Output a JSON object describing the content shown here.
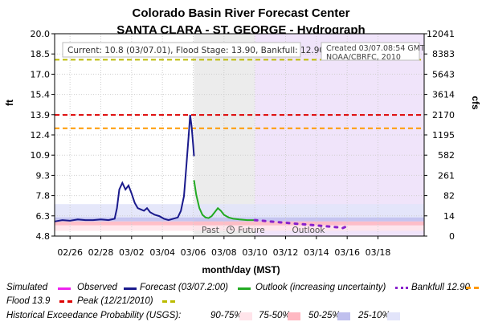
{
  "header": {
    "title": "Colorado Basin River Forecast Center",
    "subtitle": "SANTA CLARA - ST. GEORGE - Hydrograph"
  },
  "info_box": {
    "current": "Current: 10.8 (03/07.01), Flood Stage: 13.90, Bankfull: 12.90",
    "created": "Created 03/07.08:54 GMT",
    "credit": "NOAA/CBRFC, 2010"
  },
  "shade_labels": {
    "past": "Past",
    "future": "Future",
    "outlook": "Outlook"
  },
  "legend": {
    "simulated": "Simulated",
    "observed": "Observed",
    "forecast": "Forecast (03/07.2:00)",
    "outlook": "Outlook (increasing uncertainty)",
    "bankfull": "Bankfull 12.90",
    "flood": "Flood 13.9",
    "peak": "Peak (12/21/2010)",
    "exceedance_title": "Historical Exceedance Probability (USGS):",
    "p90_75": "90-75%",
    "p75_50": "75-50%",
    "p50_25": "50-25%",
    "p25_10": "25-10%"
  },
  "colors": {
    "simulated": "#ee22ee",
    "observed": "#1a1a8c",
    "forecast": "#22aa22",
    "outlook": "#8822cc",
    "bankfull": "#ff9900",
    "flood": "#dd0000",
    "peak": "#bbbb00",
    "p90_75": "#ffe4ea",
    "p75_50": "#ffb8c2",
    "p50_25": "#c0c0ee",
    "p25_10": "#e2e4fa",
    "past_shade": "#ececec",
    "outlook_shade": "#f0e4fa"
  },
  "chart_data": {
    "type": "line",
    "title": "Colorado Basin River Forecast Center",
    "subtitle": "SANTA CLARA - ST. GEORGE - Hydrograph",
    "xlabel": "month/day (MST)",
    "ylabel": "ft",
    "y2label": "cfs",
    "ylim": [
      4.8,
      20.0
    ],
    "xlim_days": [
      25,
      49
    ],
    "x_ticks": [
      {
        "day": 26,
        "label": "02/26"
      },
      {
        "day": 28,
        "label": "02/28"
      },
      {
        "day": 30,
        "label": "03/02"
      },
      {
        "day": 32,
        "label": "03/04"
      },
      {
        "day": 34,
        "label": "03/06"
      },
      {
        "day": 36,
        "label": "03/08"
      },
      {
        "day": 38,
        "label": "03/10"
      },
      {
        "day": 40,
        "label": "03/12"
      },
      {
        "day": 42,
        "label": "03/14"
      },
      {
        "day": 44,
        "label": "03/16"
      },
      {
        "day": 46,
        "label": "03/18"
      }
    ],
    "y_ticks": [
      "4.8",
      "6.3",
      "7.8",
      "9.3",
      "10.9",
      "12.4",
      "13.9",
      "15.4",
      "17.0",
      "18.5",
      "20.0"
    ],
    "y2_ticks": [
      "0",
      "14",
      "82",
      "261",
      "582",
      "1195",
      "2170",
      "3614",
      "5643",
      "8383",
      "12041"
    ],
    "x_axis_note": "x values are days since 02/01 (02/26 = 26, 03/01 = 29)",
    "observed": [
      [
        25.0,
        5.9
      ],
      [
        25.5,
        6.0
      ],
      [
        26.0,
        5.95
      ],
      [
        26.5,
        6.05
      ],
      [
        27.0,
        6.0
      ],
      [
        27.5,
        6.0
      ],
      [
        28.0,
        6.05
      ],
      [
        28.5,
        6.0
      ],
      [
        28.9,
        6.1
      ],
      [
        29.05,
        6.9
      ],
      [
        29.2,
        8.3
      ],
      [
        29.4,
        8.8
      ],
      [
        29.6,
        8.3
      ],
      [
        29.8,
        8.6
      ],
      [
        30.0,
        8.0
      ],
      [
        30.2,
        7.3
      ],
      [
        30.4,
        6.9
      ],
      [
        30.6,
        6.8
      ],
      [
        30.8,
        6.7
      ],
      [
        31.0,
        6.9
      ],
      [
        31.2,
        6.6
      ],
      [
        31.5,
        6.4
      ],
      [
        31.8,
        6.3
      ],
      [
        32.1,
        6.1
      ],
      [
        32.4,
        6.0
      ],
      [
        32.7,
        6.1
      ],
      [
        33.0,
        6.2
      ],
      [
        33.2,
        6.7
      ],
      [
        33.4,
        7.8
      ],
      [
        33.55,
        10.0
      ],
      [
        33.7,
        12.3
      ],
      [
        33.8,
        13.9
      ],
      [
        33.9,
        13.0
      ],
      [
        34.0,
        11.6
      ],
      [
        34.05,
        10.8
      ]
    ],
    "forecast": [
      [
        34.05,
        9.0
      ],
      [
        34.2,
        7.9
      ],
      [
        34.4,
        6.9
      ],
      [
        34.6,
        6.4
      ],
      [
        34.8,
        6.2
      ],
      [
        35.0,
        6.15
      ],
      [
        35.2,
        6.3
      ],
      [
        35.4,
        6.6
      ],
      [
        35.6,
        6.9
      ],
      [
        35.8,
        6.7
      ],
      [
        36.0,
        6.4
      ],
      [
        36.3,
        6.2
      ],
      [
        36.6,
        6.1
      ],
      [
        37.0,
        6.05
      ],
      [
        37.5,
        6.0
      ],
      [
        38.0,
        6.0
      ]
    ],
    "outlook": [
      [
        38.0,
        6.0
      ],
      [
        38.5,
        5.95
      ],
      [
        39.0,
        5.9
      ],
      [
        39.5,
        5.85
      ],
      [
        40.0,
        5.8
      ],
      [
        40.5,
        5.75
      ],
      [
        41.0,
        5.7
      ],
      [
        41.5,
        5.65
      ],
      [
        42.0,
        5.6
      ],
      [
        42.5,
        5.55
      ],
      [
        43.0,
        5.5
      ],
      [
        43.5,
        5.45
      ],
      [
        43.7,
        5.4
      ],
      [
        44.0,
        5.55
      ]
    ],
    "reference_lines": {
      "bankfull": 12.9,
      "flood": 13.9,
      "peak": 18.05
    },
    "current": 10.8,
    "past_shade_days": [
      34.05,
      38.0
    ],
    "outlook_shade_days": [
      38.0,
      49
    ]
  }
}
